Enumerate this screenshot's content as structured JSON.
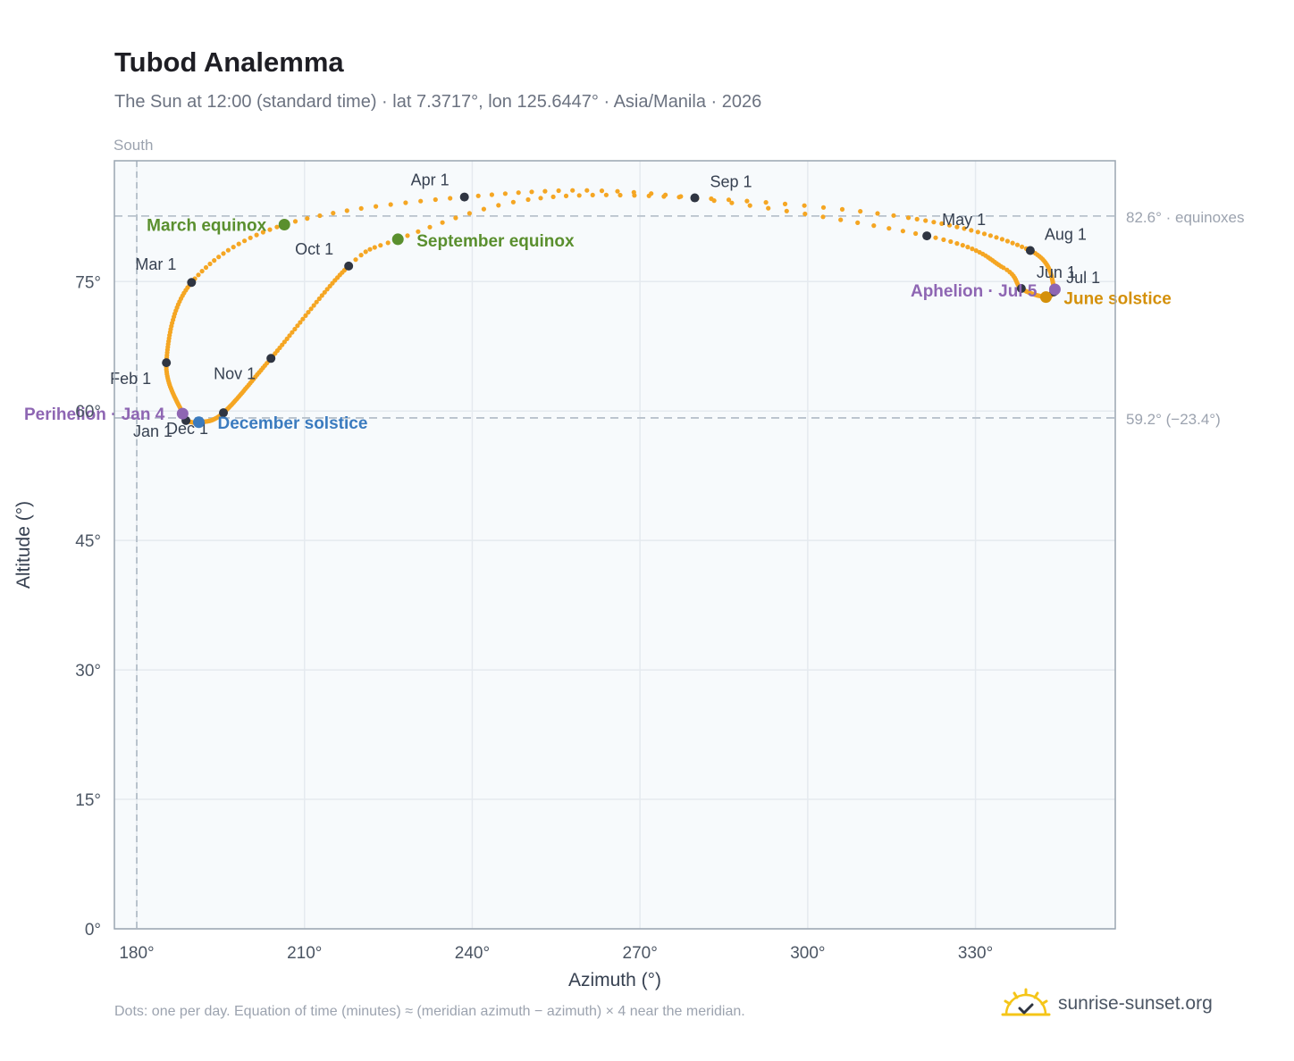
{
  "title": "Tubod Analemma",
  "subtitle": "The Sun at 12:00 (standard time) · lat 7.3717°, lon 125.6447° · Asia/Manila · 2026",
  "footnote": "Dots: one per day. Equation of time (minutes) ≈ (meridian azimuth − azimuth) × 4 near the meridian.",
  "brand": {
    "name": "sunrise-sunset.org",
    "icon": "sun-logo-icon"
  },
  "colors": {
    "path": "#f5a623",
    "month_dot": "#2f3542",
    "equinox": "#5a8f2e",
    "december_solstice": "#3b7bbf",
    "june_solstice": "#d4900a",
    "perihelion_aphelion": "#8e66b3",
    "grid": "#e5eaef",
    "plot_bg": "#f7fafc",
    "frame": "#9aa5b1",
    "reference_line": "#b8c2cc"
  },
  "chart_data": {
    "type": "scatter",
    "title": "Tubod Analemma",
    "subtitle": "The Sun at 12:00 (standard time) · lat 7.3717°, lon 125.6447° · Asia/Manila · 2026",
    "xlabel": "Azimuth (°)",
    "ylabel": "Altitude (°)",
    "xlim": [
      176,
      355
    ],
    "ylim": [
      0,
      89
    ],
    "xticks": [
      180,
      210,
      240,
      270,
      300,
      330
    ],
    "xtick_labels": [
      "180°",
      "210°",
      "240°",
      "270°",
      "300°",
      "330°"
    ],
    "yticks": [
      0,
      15,
      30,
      45,
      60,
      75
    ],
    "ytick_labels": [
      "0°",
      "15°",
      "30°",
      "45°",
      "60°",
      "75°"
    ],
    "grid": true,
    "meridian": {
      "azimuth": 180,
      "label": "South"
    },
    "reference_lines": [
      {
        "altitude": 82.6,
        "label": "82.6° · equinoxes"
      },
      {
        "altitude": 59.2,
        "label": "59.2° (−23.4°)"
      }
    ],
    "path_keypoints": [
      {
        "day": 1,
        "az": 188.8,
        "alt": 58.9
      },
      {
        "day": 4,
        "az": 188.2,
        "alt": 59.7
      },
      {
        "day": 32,
        "az": 185.3,
        "alt": 65.6
      },
      {
        "day": 60,
        "az": 189.8,
        "alt": 74.9
      },
      {
        "day": 78,
        "az": 206.4,
        "alt": 81.6
      },
      {
        "day": 91,
        "az": 238.6,
        "alt": 84.8
      },
      {
        "day": 104,
        "az": 272.0,
        "alt": 85.2
      },
      {
        "day": 121,
        "az": 321.3,
        "alt": 80.3
      },
      {
        "day": 140,
        "az": 335.0,
        "alt": 76.6
      },
      {
        "day": 152,
        "az": 338.2,
        "alt": 74.2
      },
      {
        "day": 172,
        "az": 342.6,
        "alt": 73.2
      },
      {
        "day": 182,
        "az": 344.0,
        "alt": 73.8
      },
      {
        "day": 186,
        "az": 344.2,
        "alt": 74.1
      },
      {
        "day": 213,
        "az": 339.8,
        "alt": 78.6
      },
      {
        "day": 232,
        "az": 318.0,
        "alt": 82.4
      },
      {
        "day": 244,
        "az": 279.8,
        "alt": 84.7
      },
      {
        "day": 256,
        "az": 250.0,
        "alt": 84.5
      },
      {
        "day": 266,
        "az": 226.7,
        "alt": 79.9
      },
      {
        "day": 274,
        "az": 217.9,
        "alt": 76.8
      },
      {
        "day": 305,
        "az": 204.0,
        "alt": 66.1
      },
      {
        "day": 335,
        "az": 195.5,
        "alt": 59.8
      },
      {
        "day": 355,
        "az": 191.1,
        "alt": 58.7
      },
      {
        "day": 365,
        "az": 188.8,
        "alt": 58.9
      }
    ],
    "month_markers": [
      {
        "label": "Jan 1",
        "az": 188.8,
        "alt": 58.9
      },
      {
        "label": "Feb 1",
        "az": 185.3,
        "alt": 65.6
      },
      {
        "label": "Mar 1",
        "az": 189.8,
        "alt": 74.9
      },
      {
        "label": "Apr 1",
        "az": 238.6,
        "alt": 84.8
      },
      {
        "label": "May 1",
        "az": 321.3,
        "alt": 80.3
      },
      {
        "label": "Jun 1",
        "az": 338.2,
        "alt": 74.2
      },
      {
        "label": "Jul 1",
        "az": 344.0,
        "alt": 73.8
      },
      {
        "label": "Aug 1",
        "az": 339.8,
        "alt": 78.6
      },
      {
        "label": "Sep 1",
        "az": 279.8,
        "alt": 84.7
      },
      {
        "label": "Oct 1",
        "az": 217.9,
        "alt": 76.8
      },
      {
        "label": "Nov 1",
        "az": 204.0,
        "alt": 66.1
      },
      {
        "label": "Dec 1",
        "az": 195.5,
        "alt": 59.8
      }
    ],
    "events": [
      {
        "label": "March equinox",
        "az": 206.4,
        "alt": 81.6,
        "kind": "equinox"
      },
      {
        "label": "September equinox",
        "az": 226.7,
        "alt": 79.9,
        "kind": "equinox"
      },
      {
        "label": "June solstice",
        "az": 342.6,
        "alt": 73.2,
        "kind": "june_solstice"
      },
      {
        "label": "December solstice",
        "az": 191.1,
        "alt": 58.7,
        "kind": "december_solstice"
      },
      {
        "label": "Perihelion · Jan 4",
        "az": 188.2,
        "alt": 59.7,
        "kind": "perihelion_aphelion"
      },
      {
        "label": "Aphelion · Jul 5",
        "az": 344.2,
        "alt": 74.1,
        "kind": "perihelion_aphelion"
      }
    ]
  }
}
